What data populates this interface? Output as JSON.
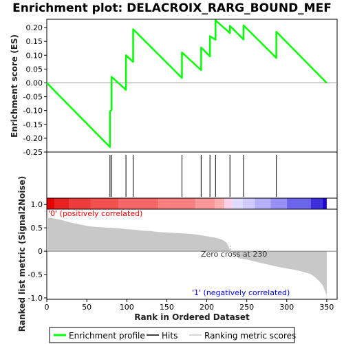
{
  "chart_data": {
    "type": "line",
    "title": "Enrichment plot: DELACROIX_RARG_BOUND_MEF",
    "es_panel": {
      "ylabel": "Enrichment score (ES)",
      "ylim": [
        -0.25,
        0.23
      ],
      "yticks": [
        "0.20",
        "0.15",
        "0.10",
        "0.05",
        "0.00",
        "-0.05",
        "-0.10",
        "-0.15",
        "-0.20",
        "-0.25"
      ],
      "ytick_values": [
        0.2,
        0.15,
        0.1,
        0.05,
        0.0,
        -0.05,
        -0.1,
        -0.15,
        -0.2,
        -0.25
      ],
      "profile_x": [
        0,
        79,
        79,
        81,
        81,
        99,
        99,
        108,
        108,
        169,
        169,
        193,
        193,
        204,
        204,
        211,
        211,
        229,
        229,
        246,
        246,
        287,
        287,
        350
      ],
      "profile_y": [
        0.0,
        -0.232,
        -0.103,
        -0.098,
        0.022,
        -0.025,
        0.1,
        0.076,
        0.194,
        0.018,
        0.11,
        0.046,
        0.128,
        0.096,
        0.169,
        0.156,
        0.226,
        0.18,
        0.206,
        0.157,
        0.208,
        0.09,
        0.185,
        0.0
      ]
    },
    "hits": [
      79,
      81,
      99,
      108,
      169,
      193,
      204,
      211,
      229,
      246,
      287
    ],
    "ranked_panel": {
      "ylabel": "Ranked list metric (Signal2Noise)",
      "ylim": [
        -1.03,
        0.9
      ],
      "yticks": [
        "1.0",
        "0.5",
        "0",
        "-0.5",
        "-1.0"
      ],
      "ytick_values": [
        1.0,
        0.5,
        0.0,
        -0.5,
        -1.0
      ],
      "metric_points_x": [
        0,
        10,
        20,
        30,
        40,
        50,
        60,
        70,
        80,
        90,
        100,
        110,
        120,
        130,
        140,
        150,
        160,
        170,
        180,
        190,
        200,
        210,
        215,
        220,
        225,
        230,
        240,
        250,
        260,
        270,
        280,
        290,
        300,
        310,
        320,
        330,
        335,
        340,
        345,
        350
      ],
      "metric_points_y": [
        0.72,
        0.7,
        0.66,
        0.61,
        0.58,
        0.54,
        0.52,
        0.51,
        0.5,
        0.49,
        0.47,
        0.46,
        0.44,
        0.43,
        0.41,
        0.4,
        0.39,
        0.38,
        0.37,
        0.35,
        0.32,
        0.29,
        0.27,
        0.24,
        0.18,
        0.0,
        -0.15,
        -0.18,
        -0.22,
        -0.26,
        -0.3,
        -0.34,
        -0.37,
        -0.4,
        -0.44,
        -0.49,
        -0.55,
        -0.63,
        -0.73,
        -0.95
      ],
      "positive_label": "'0' (positively correlated)",
      "negative_label": "'1' (negatively correlated)",
      "zero_cross_label": "Zero cross at 230",
      "zero_cross": 230
    },
    "xlabel": "Rank in Ordered Dataset",
    "xlim": [
      0,
      363
    ],
    "xticks": [
      "0",
      "50",
      "100",
      "150",
      "200",
      "250",
      "300",
      "350"
    ],
    "xtick_values": [
      0,
      50,
      100,
      150,
      200,
      250,
      300,
      350
    ],
    "color_bar": {
      "segments": [
        {
          "from": 0,
          "to": 10,
          "color": "#e30000"
        },
        {
          "from": 10,
          "to": 28,
          "color": "#e82121"
        },
        {
          "from": 28,
          "to": 55,
          "color": "#ee3c3c"
        },
        {
          "from": 55,
          "to": 90,
          "color": "#f35050"
        },
        {
          "from": 90,
          "to": 140,
          "color": "#f76767"
        },
        {
          "from": 140,
          "to": 185,
          "color": "#fb7f7f"
        },
        {
          "from": 185,
          "to": 210,
          "color": "#fd9797"
        },
        {
          "from": 210,
          "to": 222,
          "color": "#feb0b0"
        },
        {
          "from": 222,
          "to": 232,
          "color": "#ffd0e8"
        },
        {
          "from": 232,
          "to": 245,
          "color": "#e0dcff"
        },
        {
          "from": 245,
          "to": 260,
          "color": "#cfcaff"
        },
        {
          "from": 260,
          "to": 280,
          "color": "#b6b0fb"
        },
        {
          "from": 280,
          "to": 300,
          "color": "#9790f5"
        },
        {
          "from": 300,
          "to": 330,
          "color": "#6c64ea"
        },
        {
          "from": 330,
          "to": 345,
          "color": "#3d2fdc"
        },
        {
          "from": 345,
          "to": 350,
          "color": "#2200cc"
        }
      ]
    },
    "colors": {
      "profile": "#00ff00",
      "hits": "#000000",
      "ranked_fill": "#c8c8c8",
      "ranked_line": "#808080",
      "positive_text": "#ff0000",
      "negative_text": "#0000ff"
    },
    "legend": {
      "placement": "bottom",
      "entries": [
        "Enrichment profile",
        "Hits",
        "Ranking metric scores"
      ]
    }
  }
}
